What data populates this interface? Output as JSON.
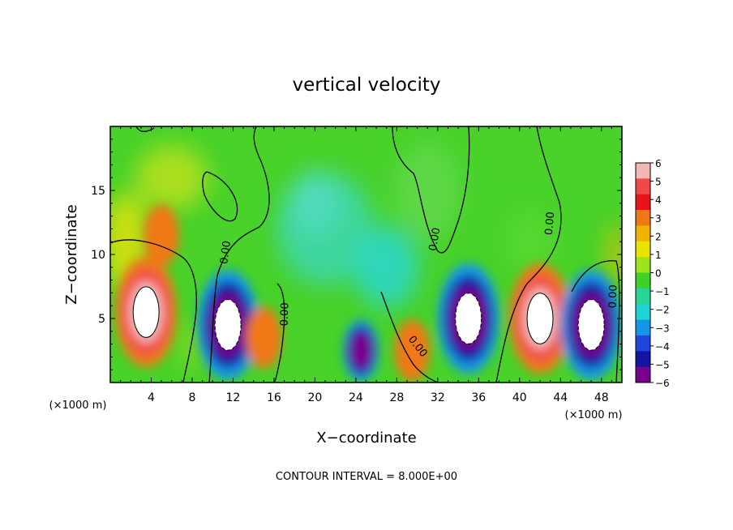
{
  "chart_data": {
    "type": "heatmap",
    "title": "vertical velocity",
    "xlabel": "X−coordinate",
    "ylabel": "Z−coordinate",
    "x_unit": "(×1000 m)",
    "y_unit": "(×1000 m)",
    "xlim": [
      0,
      50
    ],
    "ylim": [
      0,
      20
    ],
    "x_ticks": [
      "4",
      "8",
      "12",
      "16",
      "20",
      "24",
      "28",
      "32",
      "36",
      "40",
      "44",
      "48"
    ],
    "y_ticks": [
      "5",
      "10",
      "15"
    ],
    "colorbar": {
      "range": [
        -6,
        6
      ],
      "labels": [
        "6",
        "5",
        "4",
        "3",
        "2",
        "1",
        "0",
        "−1",
        "−2",
        "−3",
        "−4",
        "−5",
        "−6"
      ],
      "colors": [
        "#f2b7b7",
        "#f04848",
        "#e8141a",
        "#f07814",
        "#f0b400",
        "#e8e400",
        "#9ee21c",
        "#3cd228",
        "#28d496",
        "#1cd6d6",
        "#1496e6",
        "#1e46dc",
        "#1414a0",
        "#78008c"
      ]
    },
    "contour_labels": [
      "0.00",
      "0.00",
      "0.00",
      "0.00",
      "0.00",
      "0.00",
      "0.00",
      "0.00"
    ],
    "contour_interval_text": "CONTOUR INTERVAL = 8.000E+00",
    "features": [
      {
        "kind": "updraft",
        "x": 3.5,
        "z": 5.5,
        "peak": 8
      },
      {
        "kind": "downdraft",
        "x": 11.5,
        "z": 4.5,
        "peak": -7
      },
      {
        "kind": "updraft",
        "x": 15,
        "z": 3.5,
        "peak": 4
      },
      {
        "kind": "downdraft",
        "x": 24.5,
        "z": 2.5,
        "peak": -6
      },
      {
        "kind": "updraft",
        "x": 29.5,
        "z": 2.5,
        "peak": 3
      },
      {
        "kind": "downdraft",
        "x": 35,
        "z": 5,
        "peak": -8
      },
      {
        "kind": "updraft",
        "x": 42,
        "z": 5,
        "peak": 8
      },
      {
        "kind": "downdraft",
        "x": 47,
        "z": 4.5,
        "peak": -7
      },
      {
        "kind": "updraft",
        "x": 5,
        "z": 11.5,
        "peak": 3
      }
    ]
  }
}
